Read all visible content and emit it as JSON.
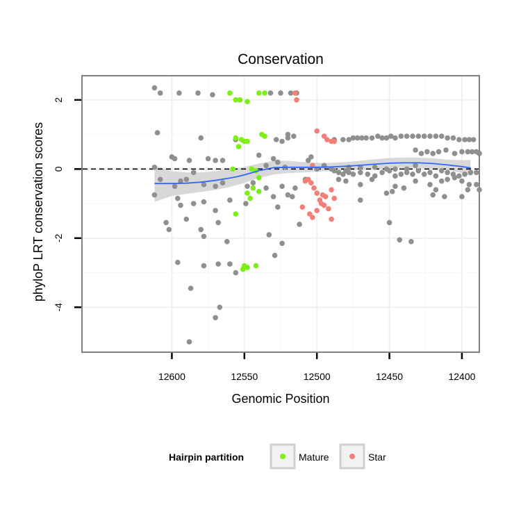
{
  "chart_data": {
    "type": "scatter",
    "title": "Conservation",
    "xlabel": "Genomic Position",
    "ylabel": "phyloP LRT conservation scores",
    "x_reversed": true,
    "xlim": [
      12388,
      12662
    ],
    "ylim": [
      -5.3,
      2.7
    ],
    "x_ticks": [
      12600,
      12550,
      12500,
      12450,
      12400
    ],
    "x_tick_labels": [
      "12600",
      "12550",
      "12500",
      "12450",
      "12400"
    ],
    "y_ticks": [
      -4,
      -2,
      0,
      2
    ],
    "y_tick_labels": [
      "-4",
      "-2",
      "0",
      "2"
    ],
    "reference_line_y": 0,
    "legend": {
      "title": "Hairpin partition",
      "position": "bottom",
      "entries": [
        {
          "label": "Mature",
          "color": "#7cf016"
        },
        {
          "label": "Star",
          "color": "#f47f76"
        }
      ]
    },
    "colors": {
      "other": "#8f8f8f",
      "Mature": "#7cf016",
      "Star": "#f47f76",
      "smooth": "#3366ff",
      "band": "#d4d4d4"
    },
    "series": [
      {
        "name": "Other",
        "points": [
          [
            12612,
            2.35
          ],
          [
            12608,
            2.2
          ],
          [
            12595,
            2.2
          ],
          [
            12582,
            2.2
          ],
          [
            12572,
            2.15
          ],
          [
            12532,
            2.2
          ],
          [
            12525,
            2.2
          ],
          [
            12518,
            2.2
          ],
          [
            12514,
            2.2
          ],
          [
            12610,
            1.05
          ],
          [
            12580,
            0.9
          ],
          [
            12556,
            0.85
          ],
          [
            12528,
            0.85
          ],
          [
            12524,
            0.8
          ],
          [
            12520,
            0.9
          ],
          [
            12516,
            0.95
          ],
          [
            12612,
            0.05
          ],
          [
            12600,
            0.35
          ],
          [
            12598,
            0.3
          ],
          [
            12588,
            0.25
          ],
          [
            12575,
            0.3
          ],
          [
            12570,
            0.25
          ],
          [
            12565,
            0.25
          ],
          [
            12540,
            0.4
          ],
          [
            12535,
            0.1
          ],
          [
            12530,
            0.3
          ],
          [
            12527,
            0.2
          ],
          [
            12522,
            0.05
          ],
          [
            12608,
            -0.3
          ],
          [
            12598,
            -0.5
          ],
          [
            12594,
            -0.35
          ],
          [
            12590,
            -0.3
          ],
          [
            12585,
            -0.1
          ],
          [
            12578,
            -0.45
          ],
          [
            12570,
            -0.5
          ],
          [
            12565,
            -0.4
          ],
          [
            12548,
            -0.5
          ],
          [
            12544,
            -0.4
          ],
          [
            12535,
            -0.55
          ],
          [
            12530,
            -0.8
          ],
          [
            12524,
            -0.5
          ],
          [
            12520,
            -0.75
          ],
          [
            12517,
            -0.8
          ],
          [
            12515,
            -0.55
          ],
          [
            12612,
            -0.75
          ],
          [
            12596,
            -0.85
          ],
          [
            12594,
            -1.05
          ],
          [
            12585,
            -1.0
          ],
          [
            12578,
            -0.95
          ],
          [
            12570,
            -1.2
          ],
          [
            12560,
            -0.9
          ],
          [
            12549,
            -1.0
          ],
          [
            12527,
            -1.1
          ],
          [
            12512,
            -1.6
          ],
          [
            12508,
            -0.3
          ],
          [
            12604,
            -1.55
          ],
          [
            12602,
            -1.75
          ],
          [
            12590,
            -1.45
          ],
          [
            12580,
            -1.75
          ],
          [
            12578,
            -1.95
          ],
          [
            12568,
            -1.55
          ],
          [
            12562,
            -2.1
          ],
          [
            12533,
            -1.9
          ],
          [
            12524,
            -2.15
          ],
          [
            12596,
            -2.7
          ],
          [
            12578,
            -2.8
          ],
          [
            12568,
            -2.75
          ],
          [
            12560,
            -2.75
          ],
          [
            12556,
            -3.0
          ],
          [
            12529,
            -2.5
          ],
          [
            12587,
            -3.45
          ],
          [
            12570,
            -4.3
          ],
          [
            12567,
            -4.0
          ],
          [
            12588,
            -5.0
          ],
          [
            12520,
            1.0
          ],
          [
            12506,
            0.25
          ],
          [
            12504,
            0.35
          ],
          [
            12500,
            0.0
          ],
          [
            12495,
            0.1
          ],
          [
            12490,
            0.0
          ],
          [
            12488,
            0.85
          ],
          [
            12482,
            0.85
          ],
          [
            12478,
            0.85
          ],
          [
            12475,
            0.9
          ],
          [
            12472,
            0.9
          ],
          [
            12469,
            0.9
          ],
          [
            12466,
            0.9
          ],
          [
            12462,
            0.9
          ],
          [
            12458,
            0.95
          ],
          [
            12455,
            0.9
          ],
          [
            12452,
            0.9
          ],
          [
            12449,
            0.95
          ],
          [
            12446,
            0.9
          ],
          [
            12442,
            0.95
          ],
          [
            12438,
            0.95
          ],
          [
            12434,
            0.95
          ],
          [
            12430,
            0.95
          ],
          [
            12426,
            0.95
          ],
          [
            12422,
            0.95
          ],
          [
            12418,
            0.95
          ],
          [
            12414,
            0.95
          ],
          [
            12410,
            0.9
          ],
          [
            12406,
            0.9
          ],
          [
            12402,
            0.85
          ],
          [
            12398,
            0.85
          ],
          [
            12395,
            0.85
          ],
          [
            12392,
            0.85
          ],
          [
            12488,
            -0.05
          ],
          [
            12485,
            -0.1
          ],
          [
            12482,
            -0.15
          ],
          [
            12478,
            -0.1
          ],
          [
            12475,
            -0.15
          ],
          [
            12470,
            -0.1
          ],
          [
            12465,
            -0.15
          ],
          [
            12460,
            -0.2
          ],
          [
            12455,
            -0.1
          ],
          [
            12450,
            -0.05
          ],
          [
            12446,
            -0.2
          ],
          [
            12442,
            -0.15
          ],
          [
            12438,
            -0.1
          ],
          [
            12434,
            -0.15
          ],
          [
            12430,
            -0.05
          ],
          [
            12426,
            -0.15
          ],
          [
            12422,
            -0.1
          ],
          [
            12418,
            -0.2
          ],
          [
            12414,
            -0.05
          ],
          [
            12410,
            -0.1
          ],
          [
            12406,
            -0.15
          ],
          [
            12402,
            -0.2
          ],
          [
            12398,
            -0.15
          ],
          [
            12394,
            -0.1
          ],
          [
            12390,
            -0.1
          ],
          [
            12485,
            -0.3
          ],
          [
            12480,
            -0.35
          ],
          [
            12470,
            -0.45
          ],
          [
            12462,
            -0.3
          ],
          [
            12446,
            -0.5
          ],
          [
            12440,
            -0.55
          ],
          [
            12432,
            -0.35
          ],
          [
            12422,
            -0.45
          ],
          [
            12418,
            -0.6
          ],
          [
            12414,
            -0.35
          ],
          [
            12410,
            -0.3
          ],
          [
            12405,
            -0.25
          ],
          [
            12400,
            -0.35
          ],
          [
            12395,
            -0.45
          ],
          [
            12390,
            -0.45
          ],
          [
            12388,
            -0.6
          ],
          [
            12452,
            -0.7
          ],
          [
            12448,
            -0.65
          ],
          [
            12420,
            -0.75
          ],
          [
            12412,
            -0.8
          ],
          [
            12400,
            -0.8
          ],
          [
            12396,
            -0.6
          ],
          [
            12470,
            -0.9
          ],
          [
            12450,
            -1.55
          ],
          [
            12443,
            -2.05
          ],
          [
            12435,
            -2.1
          ],
          [
            12480,
            -0.05
          ],
          [
            12478,
            0.05
          ],
          [
            12470,
            0.05
          ],
          [
            12460,
            0.05
          ],
          [
            12452,
            0.0
          ],
          [
            12446,
            0.0
          ],
          [
            12438,
            0.0
          ],
          [
            12432,
            0.1
          ],
          [
            12405,
            0.45
          ],
          [
            12400,
            0.5
          ],
          [
            12396,
            0.5
          ],
          [
            12393,
            0.5
          ],
          [
            12390,
            0.5
          ],
          [
            12388,
            0.45
          ],
          [
            12411,
            0.55
          ],
          [
            12416,
            0.5
          ],
          [
            12420,
            0.45
          ],
          [
            12424,
            0.5
          ],
          [
            12428,
            0.45
          ],
          [
            12432,
            0.55
          ]
        ]
      },
      {
        "name": "Mature",
        "points": [
          [
            12560,
            2.2
          ],
          [
            12556,
            2.0
          ],
          [
            12553,
            2.0
          ],
          [
            12548,
            1.95
          ],
          [
            12540,
            2.2
          ],
          [
            12536,
            2.2
          ],
          [
            12538,
            1.0
          ],
          [
            12536,
            0.95
          ],
          [
            12556,
            0.9
          ],
          [
            12552,
            0.85
          ],
          [
            12550,
            0.8
          ],
          [
            12548,
            0.8
          ],
          [
            12554,
            0.65
          ],
          [
            12558,
            0.0
          ],
          [
            12545,
            0.0
          ],
          [
            12542,
            -0.05
          ],
          [
            12540,
            -0.25
          ],
          [
            12548,
            -0.7
          ],
          [
            12546,
            -0.85
          ],
          [
            12544,
            -0.55
          ],
          [
            12556,
            -1.3
          ],
          [
            12540,
            -0.65
          ],
          [
            12550,
            -2.8
          ],
          [
            12548,
            -2.85
          ],
          [
            12542,
            -2.8
          ],
          [
            12551,
            -2.9
          ]
        ]
      },
      {
        "name": "Star",
        "points": [
          [
            12515,
            2.2
          ],
          [
            12514,
            2.0
          ],
          [
            12500,
            1.1
          ],
          [
            12495,
            0.95
          ],
          [
            12493,
            0.85
          ],
          [
            12490,
            0.8
          ],
          [
            12488,
            0.8
          ],
          [
            12503,
            0.1
          ],
          [
            12506,
            -0.3
          ],
          [
            12508,
            -0.35
          ],
          [
            12504,
            -0.4
          ],
          [
            12502,
            -0.55
          ],
          [
            12500,
            -0.7
          ],
          [
            12498,
            -0.9
          ],
          [
            12496,
            -0.75
          ],
          [
            12494,
            -0.8
          ],
          [
            12490,
            -0.6
          ],
          [
            12488,
            -0.85
          ],
          [
            12510,
            -1.1
          ],
          [
            12505,
            -1.3
          ],
          [
            12503,
            -1.4
          ],
          [
            12500,
            -1.2
          ],
          [
            12497,
            -1.0
          ],
          [
            12495,
            -1.05
          ],
          [
            12492,
            -1.15
          ],
          [
            12490,
            -1.45
          ]
        ]
      }
    ],
    "smooth_line": {
      "x": [
        12612,
        12600,
        12590,
        12580,
        12570,
        12560,
        12555,
        12550,
        12540,
        12530,
        12520,
        12510,
        12500,
        12490,
        12480,
        12470,
        12460,
        12450,
        12440,
        12430,
        12420,
        12410,
        12400,
        12394
      ],
      "y": [
        -0.42,
        -0.42,
        -0.41,
        -0.38,
        -0.33,
        -0.26,
        -0.22,
        -0.17,
        -0.05,
        0.04,
        0.05,
        0.05,
        0.05,
        0.06,
        0.08,
        0.11,
        0.14,
        0.17,
        0.18,
        0.18,
        0.16,
        0.12,
        0.07,
        0.03
      ],
      "lower": [
        -0.95,
        -0.78,
        -0.72,
        -0.66,
        -0.6,
        -0.52,
        -0.46,
        -0.4,
        -0.26,
        -0.16,
        -0.12,
        -0.1,
        -0.08,
        -0.06,
        -0.04,
        -0.02,
        0.0,
        0.02,
        0.03,
        0.03,
        0.01,
        -0.03,
        -0.12,
        -0.2
      ],
      "upper": [
        0.1,
        -0.06,
        -0.1,
        -0.1,
        -0.06,
        0.0,
        0.02,
        0.06,
        0.16,
        0.24,
        0.24,
        0.2,
        0.18,
        0.18,
        0.2,
        0.24,
        0.28,
        0.32,
        0.33,
        0.33,
        0.31,
        0.27,
        0.26,
        0.26
      ]
    }
  }
}
